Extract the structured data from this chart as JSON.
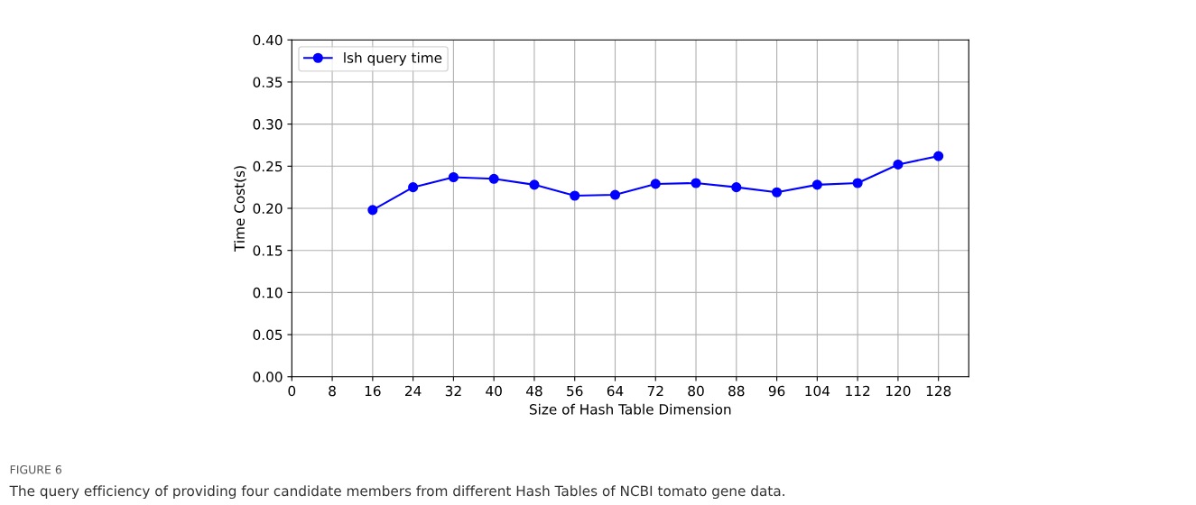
{
  "chart_data": {
    "type": "line",
    "xlabel": "Size of Hash Table Dimension",
    "ylabel": "Time Cost(s)",
    "x": [
      16,
      24,
      32,
      40,
      48,
      56,
      64,
      72,
      80,
      88,
      96,
      104,
      112,
      120,
      128
    ],
    "series": [
      {
        "name": "lsh query time",
        "color": "#0000ff",
        "values": [
          0.198,
          0.225,
          0.237,
          0.235,
          0.228,
          0.215,
          0.216,
          0.229,
          0.23,
          0.225,
          0.219,
          0.228,
          0.23,
          0.252,
          0.262
        ]
      }
    ],
    "xlim": [
      0,
      134
    ],
    "xticks": [
      0,
      8,
      16,
      24,
      32,
      40,
      48,
      56,
      64,
      72,
      80,
      88,
      96,
      104,
      112,
      120,
      128
    ],
    "ylim": [
      0,
      0.4
    ],
    "yticks": [
      {
        "value": 0,
        "label": "0.00"
      },
      {
        "value": 0.05,
        "label": "0.05"
      },
      {
        "value": 0.1,
        "label": "0.10"
      },
      {
        "value": 0.15,
        "label": "0.15"
      },
      {
        "value": 0.2,
        "label": "0.20"
      },
      {
        "value": 0.25,
        "label": "0.25"
      },
      {
        "value": 0.3,
        "label": "0.30"
      },
      {
        "value": 0.35,
        "label": "0.35"
      },
      {
        "value": 0.4,
        "label": "0.40"
      }
    ],
    "grid": true,
    "legend": "top left",
    "marker": "circle",
    "line_style": "solid",
    "annotations": [
      "FIGURE 6",
      "The query efficiency of providing four candidate members from different Hash Tables of NCBI tomato gene data."
    ]
  }
}
